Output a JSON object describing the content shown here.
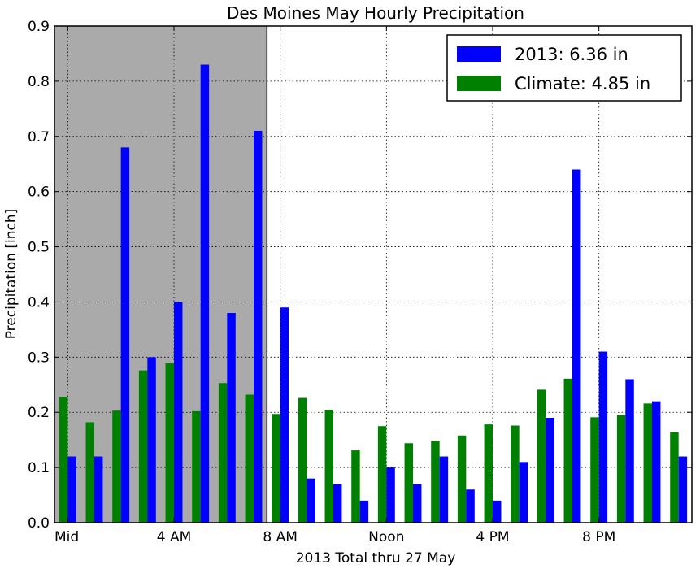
{
  "chart_data": {
    "type": "bar",
    "title": "Des Moines May Hourly Precipitation",
    "xlabel": "2013 Total thru 27 May",
    "ylabel": "Precipitation [inch]",
    "ylim": [
      0,
      0.9
    ],
    "yticks": [
      "0.0",
      "0.1",
      "0.2",
      "0.3",
      "0.4",
      "0.5",
      "0.6",
      "0.7",
      "0.8",
      "0.9"
    ],
    "xticks": [
      {
        "hour": 0,
        "label": "Mid"
      },
      {
        "hour": 4,
        "label": "4 AM"
      },
      {
        "hour": 8,
        "label": "8 AM"
      },
      {
        "hour": 12,
        "label": "Noon"
      },
      {
        "hour": 16,
        "label": "4 PM"
      },
      {
        "hour": 20,
        "label": "8 PM"
      }
    ],
    "grid": true,
    "legend_position": "top-right",
    "shaded_range_hours": [
      0,
      8
    ],
    "shade_color": "#aaaaaa",
    "hours": [
      0,
      1,
      2,
      3,
      4,
      5,
      6,
      7,
      8,
      9,
      10,
      11,
      12,
      13,
      14,
      15,
      16,
      17,
      18,
      19,
      20,
      21,
      22,
      23
    ],
    "series": [
      {
        "name": "Climate: 4.85 in",
        "color": "#008000",
        "values": [
          0.228,
          0.182,
          0.203,
          0.276,
          0.289,
          0.202,
          0.253,
          0.232,
          0.197,
          0.226,
          0.204,
          0.131,
          0.175,
          0.144,
          0.148,
          0.158,
          0.178,
          0.176,
          0.241,
          0.261,
          0.191,
          0.195,
          0.216,
          0.164
        ]
      },
      {
        "name": "2013: 6.36 in",
        "color": "#0000ff",
        "values": [
          0.12,
          0.12,
          0.68,
          0.3,
          0.4,
          0.83,
          0.38,
          0.71,
          0.39,
          0.08,
          0.07,
          0.04,
          0.1,
          0.07,
          0.12,
          0.06,
          0.04,
          0.11,
          0.19,
          0.64,
          0.31,
          0.26,
          0.22,
          0.12
        ]
      }
    ]
  }
}
